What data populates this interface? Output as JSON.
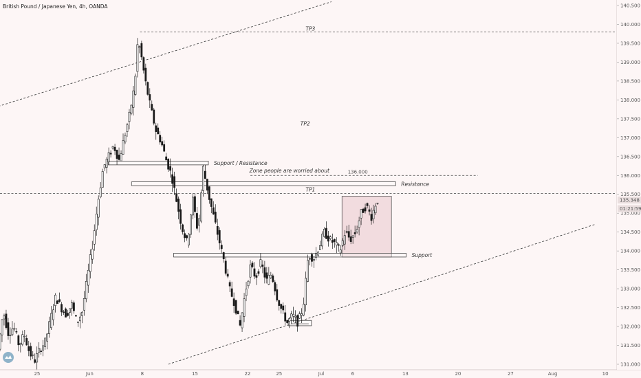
{
  "chart_data": {
    "type": "candlestick",
    "title": "British Pound / Japanese Yen, 4h, OANDA",
    "colors": {
      "background": "#fdf6f6",
      "candle": "#1a1a1a",
      "level_line": "#444444",
      "zone_fill": "#f2dcdf",
      "axis_text": "#555555",
      "price_badge": "#e9dede"
    },
    "y_axis": {
      "position": "right",
      "min": 131.0,
      "max": 140.5,
      "ticks": [
        "131.000",
        "131.500",
        "132.000",
        "132.500",
        "133.000",
        "133.500",
        "134.000",
        "134.500",
        "135.000",
        "135.500",
        "136.000",
        "136.500",
        "137.000",
        "137.500",
        "138.000",
        "138.500",
        "139.000",
        "139.500",
        "140.000",
        "140.500"
      ]
    },
    "x_axis": {
      "ticks": [
        {
          "label": "25",
          "t": 3
        },
        {
          "label": "Jun",
          "t": 8
        },
        {
          "label": "8",
          "t": 13
        },
        {
          "label": "15",
          "t": 18
        },
        {
          "label": "22",
          "t": 23
        },
        {
          "label": "25",
          "t": 26
        },
        {
          "label": "Jul",
          "t": 30
        },
        {
          "label": "6",
          "t": 33
        },
        {
          "label": "13",
          "t": 38
        },
        {
          "label": "20",
          "t": 43
        },
        {
          "label": "27",
          "t": 48
        },
        {
          "label": "Aug",
          "t": 52
        },
        {
          "label": "10",
          "t": 57
        }
      ]
    },
    "price_badges": [
      {
        "text": "135.348",
        "value": 135.348
      },
      {
        "text": "01:21:59",
        "value": 135.12
      }
    ],
    "price_path": [
      [
        0,
        131.4
      ],
      [
        0.5,
        132.4
      ],
      [
        1,
        131.8
      ],
      [
        1.5,
        132.0
      ],
      [
        2,
        131.5
      ],
      [
        2.5,
        131.8
      ],
      [
        3,
        131.3
      ],
      [
        3.5,
        131.1
      ],
      [
        4,
        131.4
      ],
      [
        4.5,
        131.6
      ],
      [
        5,
        132.2
      ],
      [
        5.5,
        132.8
      ],
      [
        6,
        132.5
      ],
      [
        6.5,
        132.3
      ],
      [
        7,
        132.6
      ],
      [
        7.5,
        132.1
      ],
      [
        8,
        132.4
      ],
      [
        8.5,
        133.3
      ],
      [
        9,
        134.2
      ],
      [
        9.5,
        135.3
      ],
      [
        10,
        136.2
      ],
      [
        10.5,
        136.5
      ],
      [
        11,
        136.8
      ],
      [
        11.5,
        136.4
      ],
      [
        12,
        137.0
      ],
      [
        12.5,
        137.6
      ],
      [
        13,
        138.4
      ],
      [
        13.3,
        139.6
      ],
      [
        13.6,
        139.2
      ],
      [
        14,
        138.5
      ],
      [
        14.5,
        137.8
      ],
      [
        15,
        137.2
      ],
      [
        15.5,
        136.9
      ],
      [
        16,
        136.4
      ],
      [
        16.5,
        136.0
      ],
      [
        17,
        135.3
      ],
      [
        17.5,
        134.6
      ],
      [
        18,
        134.2
      ],
      [
        18.5,
        135.4
      ],
      [
        19,
        134.5
      ],
      [
        19.5,
        136.2
      ],
      [
        20,
        135.5
      ],
      [
        20.5,
        134.9
      ],
      [
        21,
        134.3
      ],
      [
        21.5,
        133.7
      ],
      [
        22,
        133.0
      ],
      [
        22.5,
        132.6
      ],
      [
        23,
        132.0
      ],
      [
        23.5,
        132.9
      ],
      [
        24,
        133.6
      ],
      [
        24.5,
        133.3
      ],
      [
        25,
        133.7
      ],
      [
        25.5,
        133.2
      ],
      [
        26,
        133.4
      ],
      [
        26.5,
        132.8
      ],
      [
        27,
        132.4
      ],
      [
        27.5,
        132.1
      ],
      [
        28,
        132.3
      ],
      [
        28.5,
        132.1
      ],
      [
        29,
        132.5
      ],
      [
        29.5,
        133.9
      ],
      [
        30,
        133.8
      ],
      [
        30.5,
        134.1
      ],
      [
        31,
        134.5
      ],
      [
        31.5,
        134.3
      ],
      [
        32,
        134.2
      ],
      [
        32.5,
        134.0
      ],
      [
        33,
        134.5
      ],
      [
        33.5,
        134.3
      ],
      [
        34,
        134.5
      ],
      [
        34.5,
        135.0
      ],
      [
        35,
        135.2
      ],
      [
        35.5,
        134.9
      ],
      [
        36,
        135.35
      ]
    ],
    "levels": [
      {
        "label": "TP3",
        "value": 139.8
      },
      {
        "label": "TP1",
        "value": 135.52
      },
      {
        "label": "136.000",
        "value": 136.0
      }
    ],
    "zones": [
      {
        "label": "Support / Resistance",
        "t_start": 10.3,
        "t_end": 19.8,
        "low": 136.28,
        "high": 136.38
      },
      {
        "label": "Zone people are worried about",
        "t_start": 0,
        "t_end": 0,
        "low": 0,
        "high": 0
      },
      {
        "label": "Resistance",
        "t_start": 12.5,
        "t_end": 37.6,
        "low": 135.73,
        "high": 135.83
      },
      {
        "label": "Support",
        "t_start": 16.5,
        "t_end": 38.6,
        "low": 133.84,
        "high": 133.94
      },
      {
        "label": "",
        "t_start": 27.4,
        "t_end": 29.6,
        "low": 132.02,
        "high": 132.16
      }
    ],
    "annotations": [
      {
        "text": "TP2",
        "t": 29.0,
        "value": 137.32
      }
    ],
    "trendlines": [
      {
        "t1": -0.5,
        "v1": 137.8,
        "t2": 31.5,
        "v2": 140.6
      },
      {
        "t1": 16.0,
        "v1": 131.0,
        "t2": 56.5,
        "v2": 134.7
      }
    ],
    "consolidation_box": {
      "t_start": 32.5,
      "t_end": 37.2,
      "low": 133.84,
      "high": 135.45
    }
  }
}
